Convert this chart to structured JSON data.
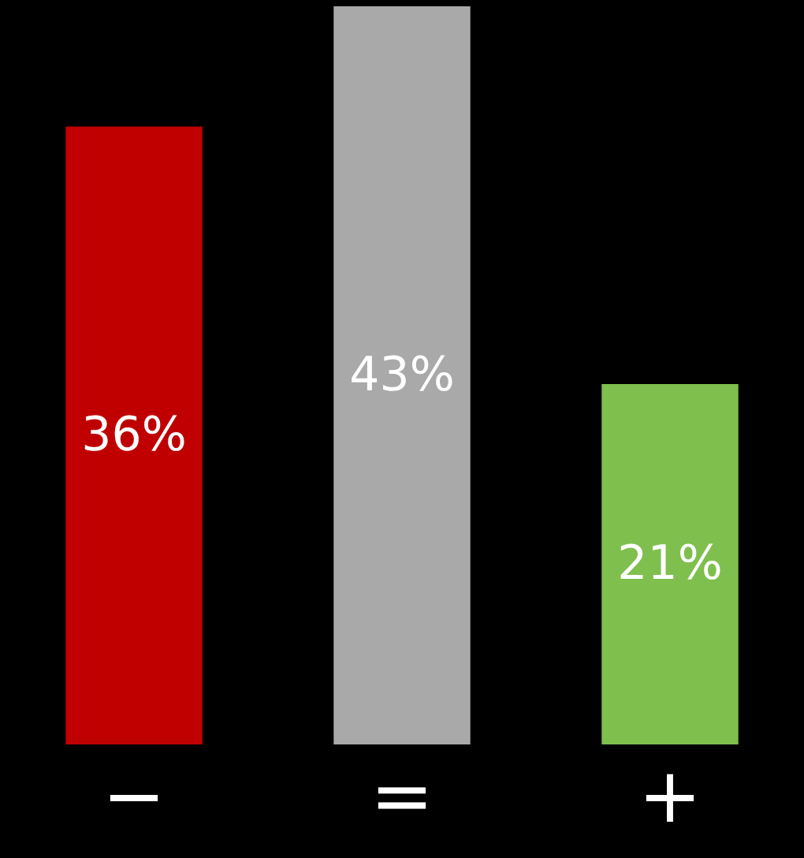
{
  "chart_data": {
    "type": "bar",
    "categories": [
      "−",
      "=",
      "+"
    ],
    "values": [
      36,
      43,
      21
    ],
    "colors": [
      "#c00000",
      "#a9a9a9",
      "#7fbf4d"
    ],
    "value_labels": [
      "36%",
      "43%",
      "21%"
    ],
    "legend": false
  }
}
